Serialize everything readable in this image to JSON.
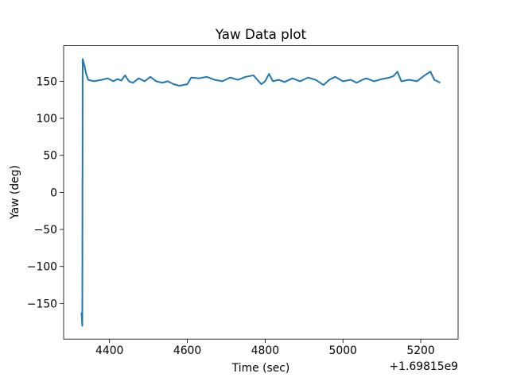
{
  "chart_data": {
    "type": "line",
    "title": "Yaw Data plot",
    "x_label": "Time (sec)",
    "y_label": "Yaw (deg)",
    "x_offset_label": "+1.69815e9",
    "x": [
      4328,
      4330,
      4331,
      4335,
      4340,
      4345,
      4360,
      4380,
      4395,
      4410,
      4420,
      4430,
      4440,
      4450,
      4460,
      4475,
      4490,
      4505,
      4520,
      4535,
      4550,
      4565,
      4580,
      4600,
      4610,
      4630,
      4650,
      4670,
      4690,
      4710,
      4730,
      4750,
      4770,
      4790,
      4800,
      4810,
      4820,
      4835,
      4850,
      4870,
      4890,
      4910,
      4930,
      4950,
      4965,
      4980,
      5000,
      5020,
      5035,
      5050,
      5060,
      5080,
      5100,
      5120,
      5130,
      5140,
      5150,
      5170,
      5190,
      5210,
      5225,
      5235,
      5250
    ],
    "series": [
      {
        "name": "Yaw",
        "color": "#1f77b4",
        "values": [
          -162,
          -180,
          180,
          172,
          160,
          152,
          150,
          152,
          154,
          150,
          153,
          151,
          158,
          150,
          148,
          154,
          150,
          156,
          150,
          148,
          150,
          146,
          144,
          146,
          155,
          154,
          156,
          152,
          150,
          155,
          152,
          156,
          158,
          146,
          150,
          160,
          150,
          152,
          149,
          154,
          150,
          155,
          152,
          145,
          152,
          156,
          150,
          152,
          148,
          152,
          154,
          150,
          153,
          155,
          157,
          163,
          150,
          152,
          150,
          158,
          163,
          152,
          148
        ]
      }
    ],
    "xlim": [
      4282,
      5296
    ],
    "ylim": [
      -198,
      198
    ],
    "xticks": [
      4400,
      4600,
      4800,
      5000,
      5200
    ],
    "yticks": [
      {
        "value": -150,
        "label": "−150"
      },
      {
        "value": -100,
        "label": "−100"
      },
      {
        "value": -50,
        "label": "−50"
      },
      0,
      50,
      100,
      150
    ]
  }
}
